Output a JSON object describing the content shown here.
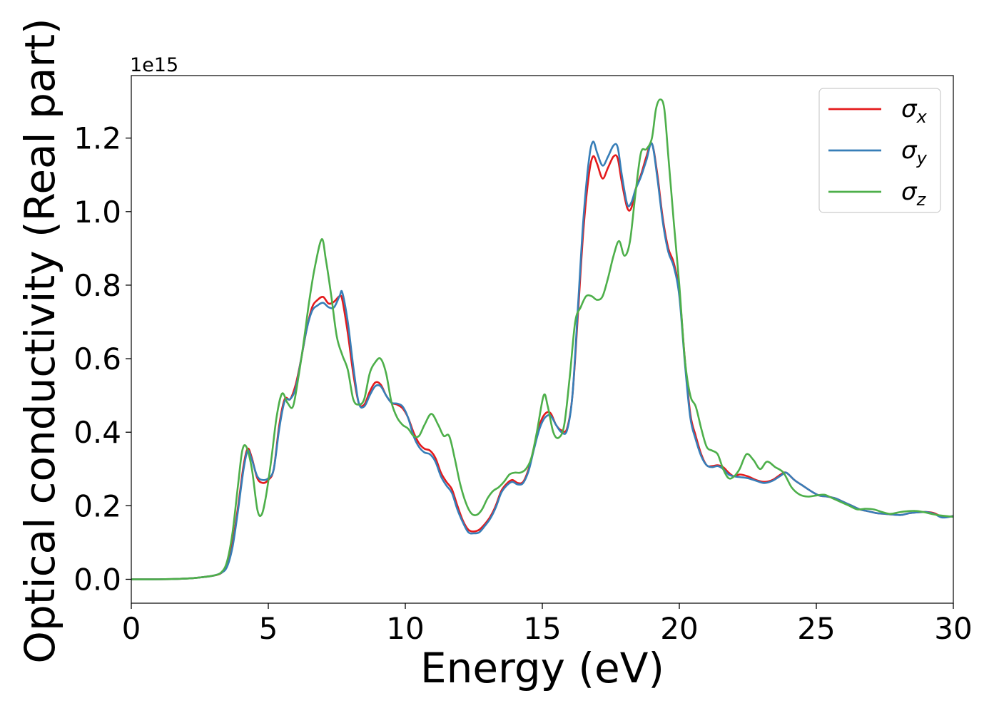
{
  "chart_data": {
    "type": "line",
    "xlabel": "Energy (eV)",
    "ylabel": "Optical conductivity (Real part)",
    "y_offset_label": "1e15",
    "xlim": [
      0,
      30
    ],
    "ylim": [
      -0.065,
      1.37
    ],
    "x_ticks": [
      0,
      5,
      10,
      15,
      20,
      25,
      30
    ],
    "y_ticks": [
      0.0,
      0.2,
      0.4,
      0.6,
      0.8,
      1.0,
      1.2
    ],
    "grid": false,
    "legend_position": "top-right",
    "series": [
      {
        "name": "x",
        "color": "#e41a1c",
        "x": [
          0,
          1,
          2,
          2.5,
          3,
          3.3,
          3.5,
          3.7,
          3.9,
          4.1,
          4.25,
          4.4,
          4.6,
          4.8,
          5.0,
          5.2,
          5.4,
          5.6,
          5.8,
          6.0,
          6.2,
          6.4,
          6.6,
          6.8,
          7.0,
          7.2,
          7.4,
          7.6,
          7.7,
          7.9,
          8.1,
          8.3,
          8.5,
          8.7,
          8.9,
          9.1,
          9.3,
          9.5,
          9.7,
          9.9,
          10.1,
          10.3,
          10.5,
          10.7,
          10.9,
          11.1,
          11.3,
          11.5,
          11.7,
          11.9,
          12.1,
          12.3,
          12.5,
          12.7,
          12.9,
          13.1,
          13.3,
          13.5,
          13.7,
          13.9,
          14.1,
          14.3,
          14.5,
          14.7,
          14.9,
          15.1,
          15.3,
          15.5,
          15.7,
          15.9,
          16.1,
          16.3,
          16.5,
          16.7,
          16.85,
          17.0,
          17.2,
          17.4,
          17.6,
          17.75,
          17.9,
          18.1,
          18.25,
          18.4,
          18.6,
          18.8,
          19.0,
          19.2,
          19.4,
          19.6,
          19.8,
          20.0,
          20.2,
          20.4,
          20.6,
          20.8,
          21.0,
          21.2,
          21.4,
          21.6,
          21.8,
          22.0,
          22.2,
          22.5,
          22.8,
          23.1,
          23.4,
          23.7,
          23.9,
          24.2,
          24.5,
          24.8,
          25.1,
          25.4,
          25.7,
          26.0,
          26.3,
          26.6,
          26.9,
          27.2,
          27.5,
          27.8,
          28.1,
          28.4,
          28.7,
          29.0,
          29.3,
          29.6,
          30.0
        ],
        "y": [
          0.0,
          0.0,
          0.002,
          0.005,
          0.01,
          0.018,
          0.04,
          0.1,
          0.2,
          0.31,
          0.355,
          0.33,
          0.275,
          0.262,
          0.27,
          0.3,
          0.42,
          0.49,
          0.49,
          0.53,
          0.6,
          0.68,
          0.74,
          0.76,
          0.768,
          0.75,
          0.755,
          0.77,
          0.76,
          0.67,
          0.56,
          0.48,
          0.475,
          0.51,
          0.535,
          0.53,
          0.5,
          0.48,
          0.475,
          0.465,
          0.44,
          0.4,
          0.37,
          0.355,
          0.35,
          0.33,
          0.29,
          0.265,
          0.245,
          0.2,
          0.16,
          0.135,
          0.13,
          0.135,
          0.15,
          0.17,
          0.2,
          0.24,
          0.26,
          0.27,
          0.262,
          0.265,
          0.3,
          0.36,
          0.42,
          0.45,
          0.452,
          0.42,
          0.405,
          0.41,
          0.5,
          0.72,
          0.95,
          1.1,
          1.15,
          1.13,
          1.09,
          1.12,
          1.15,
          1.145,
          1.08,
          1.01,
          1.01,
          1.06,
          1.1,
          1.15,
          1.185,
          1.1,
          0.98,
          0.9,
          0.86,
          0.78,
          0.6,
          0.45,
          0.39,
          0.34,
          0.31,
          0.308,
          0.31,
          0.305,
          0.29,
          0.28,
          0.285,
          0.28,
          0.27,
          0.265,
          0.27,
          0.285,
          0.29,
          0.27,
          0.255,
          0.24,
          0.228,
          0.225,
          0.22,
          0.21,
          0.2,
          0.19,
          0.185,
          0.18,
          0.178,
          0.176,
          0.175,
          0.18,
          0.182,
          0.183,
          0.18,
          0.17,
          0.172
        ],
        "legend_sub": "x"
      },
      {
        "name": "y",
        "color": "#377eb8",
        "x": [
          0,
          1,
          2,
          2.5,
          3,
          3.3,
          3.5,
          3.7,
          3.9,
          4.1,
          4.25,
          4.4,
          4.6,
          4.8,
          5.0,
          5.2,
          5.4,
          5.6,
          5.8,
          6.0,
          6.2,
          6.4,
          6.6,
          6.8,
          7.0,
          7.2,
          7.4,
          7.6,
          7.7,
          7.9,
          8.1,
          8.3,
          8.5,
          8.7,
          8.9,
          9.1,
          9.3,
          9.5,
          9.7,
          9.9,
          10.1,
          10.3,
          10.5,
          10.7,
          10.9,
          11.1,
          11.3,
          11.5,
          11.7,
          11.9,
          12.1,
          12.3,
          12.5,
          12.7,
          12.9,
          13.1,
          13.3,
          13.5,
          13.7,
          13.9,
          14.1,
          14.3,
          14.5,
          14.7,
          14.9,
          15.1,
          15.3,
          15.5,
          15.7,
          15.9,
          16.1,
          16.3,
          16.5,
          16.7,
          16.85,
          17.0,
          17.2,
          17.4,
          17.6,
          17.75,
          17.9,
          18.1,
          18.25,
          18.4,
          18.6,
          18.8,
          19.0,
          19.2,
          19.4,
          19.6,
          19.8,
          20.0,
          20.2,
          20.4,
          20.6,
          20.8,
          21.0,
          21.2,
          21.4,
          21.6,
          21.8,
          22.0,
          22.2,
          22.5,
          22.8,
          23.1,
          23.4,
          23.7,
          23.9,
          24.2,
          24.5,
          24.8,
          25.1,
          25.4,
          25.7,
          26.0,
          26.3,
          26.6,
          26.9,
          27.2,
          27.5,
          27.8,
          28.1,
          28.4,
          28.7,
          29.0,
          29.3,
          29.6,
          30.0
        ],
        "y": [
          0.0,
          0.0,
          0.002,
          0.005,
          0.01,
          0.018,
          0.035,
          0.09,
          0.19,
          0.3,
          0.35,
          0.325,
          0.28,
          0.27,
          0.275,
          0.3,
          0.41,
          0.485,
          0.49,
          0.52,
          0.6,
          0.68,
          0.73,
          0.745,
          0.752,
          0.74,
          0.74,
          0.77,
          0.78,
          0.7,
          0.58,
          0.48,
          0.47,
          0.5,
          0.525,
          0.525,
          0.5,
          0.48,
          0.478,
          0.47,
          0.44,
          0.39,
          0.36,
          0.345,
          0.34,
          0.32,
          0.28,
          0.255,
          0.235,
          0.19,
          0.155,
          0.128,
          0.125,
          0.128,
          0.145,
          0.165,
          0.195,
          0.235,
          0.255,
          0.265,
          0.258,
          0.262,
          0.295,
          0.355,
          0.41,
          0.44,
          0.445,
          0.42,
          0.4,
          0.405,
          0.5,
          0.74,
          0.98,
          1.14,
          1.19,
          1.16,
          1.125,
          1.15,
          1.18,
          1.175,
          1.1,
          1.02,
          1.025,
          1.06,
          1.095,
          1.14,
          1.185,
          1.09,
          0.97,
          0.89,
          0.85,
          0.77,
          0.59,
          0.44,
          0.38,
          0.335,
          0.31,
          0.305,
          0.308,
          0.3,
          0.285,
          0.28,
          0.278,
          0.275,
          0.268,
          0.262,
          0.268,
          0.282,
          0.29,
          0.27,
          0.255,
          0.24,
          0.228,
          0.225,
          0.22,
          0.21,
          0.2,
          0.19,
          0.185,
          0.18,
          0.178,
          0.176,
          0.175,
          0.18,
          0.182,
          0.183,
          0.178,
          0.168,
          0.172
        ],
        "legend_sub": "y"
      },
      {
        "name": "z",
        "color": "#4daf4a",
        "x": [
          0,
          1,
          2,
          2.5,
          3,
          3.3,
          3.5,
          3.7,
          3.9,
          4.05,
          4.2,
          4.4,
          4.6,
          4.75,
          4.9,
          5.1,
          5.3,
          5.5,
          5.7,
          5.9,
          6.1,
          6.3,
          6.5,
          6.7,
          6.95,
          7.1,
          7.3,
          7.5,
          7.7,
          7.9,
          8.1,
          8.3,
          8.5,
          8.7,
          8.9,
          9.1,
          9.3,
          9.5,
          9.7,
          9.9,
          10.1,
          10.3,
          10.5,
          10.7,
          10.95,
          11.2,
          11.4,
          11.6,
          11.8,
          12.0,
          12.2,
          12.4,
          12.6,
          12.8,
          13.0,
          13.2,
          13.4,
          13.6,
          13.8,
          14.0,
          14.2,
          14.4,
          14.6,
          14.8,
          15.05,
          15.2,
          15.4,
          15.6,
          15.8,
          16.0,
          16.2,
          16.4,
          16.6,
          16.8,
          17.0,
          17.2,
          17.4,
          17.6,
          17.8,
          18.0,
          18.2,
          18.4,
          18.6,
          18.8,
          19.0,
          19.15,
          19.3,
          19.45,
          19.6,
          19.8,
          20.0,
          20.2,
          20.4,
          20.6,
          20.8,
          21.0,
          21.2,
          21.4,
          21.6,
          21.8,
          22.0,
          22.2,
          22.45,
          22.7,
          22.95,
          23.2,
          23.5,
          23.8,
          24.1,
          24.4,
          24.7,
          25.0,
          25.3,
          25.6,
          25.9,
          26.2,
          26.5,
          26.8,
          27.1,
          27.4,
          27.7,
          28.0,
          28.3,
          28.6,
          28.9,
          29.2,
          29.5,
          30.0
        ],
        "y": [
          0.0,
          0.0,
          0.002,
          0.005,
          0.01,
          0.02,
          0.05,
          0.13,
          0.26,
          0.35,
          0.36,
          0.3,
          0.19,
          0.175,
          0.22,
          0.32,
          0.44,
          0.505,
          0.48,
          0.47,
          0.55,
          0.65,
          0.76,
          0.85,
          0.925,
          0.87,
          0.77,
          0.66,
          0.61,
          0.57,
          0.49,
          0.475,
          0.49,
          0.56,
          0.59,
          0.6,
          0.56,
          0.48,
          0.44,
          0.42,
          0.41,
          0.39,
          0.39,
          0.42,
          0.45,
          0.42,
          0.39,
          0.39,
          0.33,
          0.26,
          0.21,
          0.18,
          0.175,
          0.19,
          0.22,
          0.24,
          0.25,
          0.265,
          0.285,
          0.29,
          0.29,
          0.3,
          0.33,
          0.4,
          0.5,
          0.47,
          0.4,
          0.385,
          0.42,
          0.55,
          0.7,
          0.74,
          0.77,
          0.77,
          0.76,
          0.77,
          0.82,
          0.88,
          0.92,
          0.88,
          0.92,
          1.05,
          1.16,
          1.17,
          1.2,
          1.28,
          1.305,
          1.28,
          1.15,
          0.97,
          0.8,
          0.6,
          0.5,
          0.47,
          0.41,
          0.36,
          0.35,
          0.34,
          0.3,
          0.275,
          0.28,
          0.3,
          0.34,
          0.325,
          0.3,
          0.32,
          0.305,
          0.29,
          0.25,
          0.23,
          0.225,
          0.228,
          0.23,
          0.22,
          0.21,
          0.2,
          0.19,
          0.192,
          0.19,
          0.183,
          0.178,
          0.182,
          0.185,
          0.186,
          0.183,
          0.178,
          0.174,
          0.17
        ]
      }
    ]
  }
}
